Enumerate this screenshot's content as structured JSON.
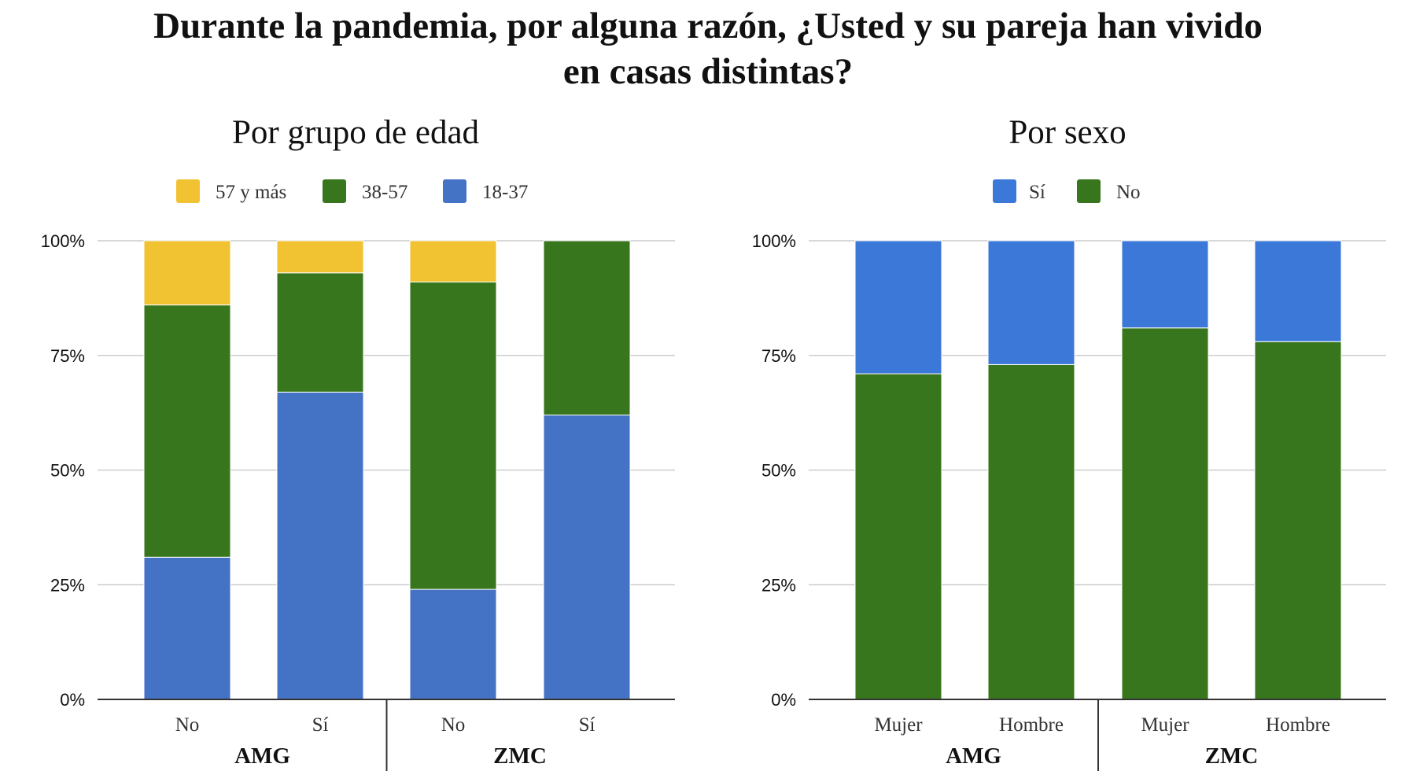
{
  "title_line1": "Durante la pandemia, por alguna razón, ¿Usted y su pareja han vivido",
  "title_line2": "en casas distintas?",
  "chart_data": [
    {
      "type": "bar",
      "stacked": true,
      "title": "Por grupo de edad",
      "legend_position": "top",
      "groups": [
        "AMG",
        "ZMC"
      ],
      "categories": [
        "No",
        "Sí",
        "No",
        "Sí"
      ],
      "category_groups": [
        "AMG",
        "AMG",
        "ZMC",
        "ZMC"
      ],
      "ylim": [
        0,
        100
      ],
      "yticks": [
        "0%",
        "25%",
        "50%",
        "75%",
        "100%"
      ],
      "grid": true,
      "legend": [
        "57 y más",
        "38-57",
        "18-37"
      ],
      "series": [
        {
          "name": "18-37",
          "color": "#4472c4",
          "values": [
            31,
            67,
            24,
            62
          ]
        },
        {
          "name": "38-57",
          "color": "#38761d",
          "values": [
            55,
            26,
            67,
            38
          ]
        },
        {
          "name": "57 y más",
          "color": "#f1c232",
          "values": [
            14,
            7,
            9,
            0
          ]
        }
      ]
    },
    {
      "type": "bar",
      "stacked": true,
      "title": "Por sexo",
      "legend_position": "top",
      "groups": [
        "AMG",
        "ZMC"
      ],
      "categories": [
        "Mujer",
        "Hombre",
        "Mujer",
        "Hombre"
      ],
      "category_groups": [
        "AMG",
        "AMG",
        "ZMC",
        "ZMC"
      ],
      "ylim": [
        0,
        100
      ],
      "yticks": [
        "0%",
        "25%",
        "50%",
        "75%",
        "100%"
      ],
      "grid": true,
      "legend": [
        "Sí",
        "No"
      ],
      "series": [
        {
          "name": "No",
          "color": "#38761d",
          "values": [
            71,
            73,
            81,
            78
          ]
        },
        {
          "name": "Sí",
          "color": "#3c78d8",
          "values": [
            29,
            27,
            19,
            22
          ]
        }
      ]
    }
  ]
}
